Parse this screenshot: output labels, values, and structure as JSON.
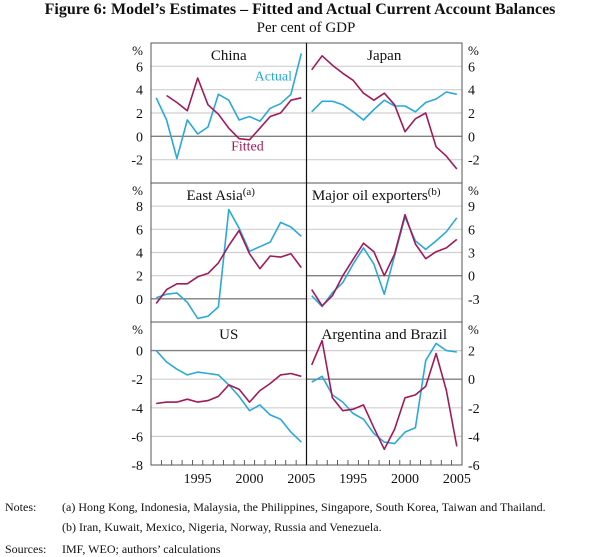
{
  "title": "Figure 6: Model’s Estimates – Fitted and Actual Current Account Balances",
  "subtitle": "Per cent of GDP",
  "unit_label": "%",
  "colors": {
    "actual": "#2aa8dc",
    "fitted": "#a01a5a",
    "grid": "#cfcfcf",
    "zero": "#808080"
  },
  "notes": {
    "label": "Notes:",
    "items": [
      "(a) Hong Kong, Indonesia, Malaysia, the Philippines, Singapore, South Korea, Taiwan and Thailand.",
      "(b) Iran, Kuwait, Mexico, Nigeria, Norway, Russia and Venezuela."
    ]
  },
  "sources": {
    "label": "Sources:",
    "text": "IMF, WEO; authors’ calculations"
  },
  "chart_data": [
    {
      "type": "line",
      "title": "China",
      "title_sup": "",
      "axis_side": "left",
      "x": [
        1991,
        1992,
        1993,
        1994,
        1995,
        1996,
        1997,
        1998,
        1999,
        2000,
        2001,
        2002,
        2003,
        2004,
        2005
      ],
      "ylim": [
        -4,
        8
      ],
      "yticks": [
        6,
        4,
        2,
        0,
        -2
      ],
      "series": [
        {
          "name": "Actual",
          "values": [
            3.3,
            1.4,
            -1.9,
            1.4,
            0.2,
            0.8,
            3.6,
            3.1,
            1.4,
            1.7,
            1.3,
            2.4,
            2.8,
            3.6,
            7.1
          ]
        },
        {
          "name": "Fitted",
          "values": [
            null,
            3.5,
            2.9,
            2.2,
            5.0,
            2.7,
            1.9,
            0.7,
            -0.2,
            -0.3,
            0.7,
            1.7,
            2.0,
            3.1,
            3.3
          ]
        }
      ],
      "annotations": [
        {
          "text": "Actual",
          "series": "Actual",
          "x": 2002.3,
          "y": 4.8
        },
        {
          "text": "Fitted",
          "series": "Fitted",
          "x": 1999.8,
          "y": -1.2
        }
      ]
    },
    {
      "type": "line",
      "title": "Japan",
      "title_sup": "",
      "axis_side": "right",
      "x": [
        1991,
        1992,
        1993,
        1994,
        1995,
        1996,
        1997,
        1998,
        1999,
        2000,
        2001,
        2002,
        2003,
        2004,
        2005
      ],
      "ylim": [
        -4,
        8
      ],
      "yticks": [
        6,
        4,
        2,
        0,
        -2
      ],
      "series": [
        {
          "name": "Actual",
          "values": [
            2.1,
            3.0,
            3.0,
            2.7,
            2.1,
            1.4,
            2.3,
            3.1,
            2.6,
            2.6,
            2.1,
            2.9,
            3.2,
            3.8,
            3.6
          ]
        },
        {
          "name": "Fitted",
          "values": [
            5.7,
            6.9,
            6.1,
            5.4,
            4.8,
            3.7,
            3.1,
            3.7,
            2.7,
            0.4,
            1.5,
            2.0,
            -0.9,
            -1.7,
            -2.8
          ]
        }
      ]
    },
    {
      "type": "line",
      "title": "East Asia",
      "title_sup": "(a)",
      "axis_side": "left",
      "x": [
        1991,
        1992,
        1993,
        1994,
        1995,
        1996,
        1997,
        1998,
        1999,
        2000,
        2001,
        2002,
        2003,
        2004,
        2005
      ],
      "ylim": [
        -2,
        10
      ],
      "yticks": [
        8,
        6,
        4,
        2,
        0
      ],
      "series": [
        {
          "name": "Actual",
          "values": [
            0.1,
            0.4,
            0.5,
            -0.3,
            -1.7,
            -1.5,
            -0.7,
            7.7,
            6.1,
            4.1,
            4.5,
            4.9,
            6.6,
            6.2,
            5.4
          ]
        },
        {
          "name": "Fitted",
          "values": [
            -0.4,
            0.8,
            1.3,
            1.3,
            1.9,
            2.2,
            3.1,
            4.6,
            5.9,
            3.9,
            2.6,
            3.7,
            3.6,
            3.9,
            2.7
          ]
        }
      ]
    },
    {
      "type": "line",
      "title": "Major oil exporters",
      "title_sup": "(b)",
      "axis_side": "right",
      "x": [
        1991,
        1992,
        1993,
        1994,
        1995,
        1996,
        1997,
        1998,
        1999,
        2000,
        2001,
        2002,
        2003,
        2004,
        2005
      ],
      "ylim": [
        -6,
        12
      ],
      "yticks": [
        9,
        6,
        3,
        0,
        -3
      ],
      "series": [
        {
          "name": "Actual",
          "values": [
            -2.6,
            -4.0,
            -2.2,
            -0.9,
            1.5,
            3.6,
            1.5,
            -2.4,
            2.6,
            7.6,
            4.5,
            3.4,
            4.5,
            5.7,
            7.5
          ]
        },
        {
          "name": "Fitted",
          "values": [
            -1.8,
            -3.9,
            -2.6,
            0.0,
            2.1,
            4.2,
            3.1,
            0.0,
            2.8,
            7.9,
            4.1,
            2.2,
            3.1,
            3.6,
            4.7
          ]
        }
      ]
    },
    {
      "type": "line",
      "title": "US",
      "title_sup": "",
      "axis_side": "left",
      "x": [
        1991,
        1992,
        1993,
        1994,
        1995,
        1996,
        1997,
        1998,
        1999,
        2000,
        2001,
        2002,
        2003,
        2004,
        2005
      ],
      "ylim": [
        -8,
        2
      ],
      "yticks": [
        0,
        -2,
        -4,
        -6,
        -8
      ],
      "xticklabels": [
        1995,
        2000,
        2005
      ],
      "series": [
        {
          "name": "Actual",
          "values": [
            0.0,
            -0.8,
            -1.3,
            -1.7,
            -1.5,
            -1.6,
            -1.7,
            -2.4,
            -3.2,
            -4.2,
            -3.8,
            -4.5,
            -4.8,
            -5.7,
            -6.4
          ]
        },
        {
          "name": "Fitted",
          "values": [
            -3.7,
            -3.6,
            -3.6,
            -3.4,
            -3.6,
            -3.5,
            -3.2,
            -2.4,
            -2.7,
            -3.6,
            -2.8,
            -2.3,
            -1.7,
            -1.6,
            -1.8
          ]
        }
      ]
    },
    {
      "type": "line",
      "title": "Argentina and Brazil",
      "title_sup": "",
      "axis_side": "right",
      "x": [
        1991,
        1992,
        1993,
        1994,
        1995,
        1996,
        1997,
        1998,
        1999,
        2000,
        2001,
        2002,
        2003,
        2004,
        2005
      ],
      "ylim": [
        -6,
        4
      ],
      "yticks": [
        2,
        0,
        -2,
        -4,
        -6
      ],
      "xticklabels": [
        1995,
        2000,
        2005
      ],
      "series": [
        {
          "name": "Actual",
          "values": [
            -0.2,
            0.2,
            -1.1,
            -1.6,
            -2.4,
            -2.8,
            -3.8,
            -4.4,
            -4.5,
            -3.7,
            -3.4,
            1.3,
            2.5,
            2.0,
            1.9
          ]
        },
        {
          "name": "Fitted",
          "values": [
            1.0,
            2.7,
            -1.3,
            -2.2,
            -2.1,
            -1.8,
            -3.4,
            -4.9,
            -3.5,
            -1.3,
            -1.1,
            -0.5,
            1.8,
            -0.8,
            -4.7
          ]
        }
      ]
    }
  ]
}
